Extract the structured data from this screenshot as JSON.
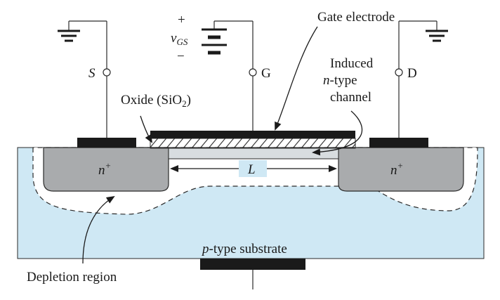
{
  "labels": {
    "gate_electrode": "Gate electrode",
    "vgs_plus": "+",
    "vgs_v": "v",
    "vgs_sub": "GS",
    "vgs_minus": "−",
    "source": "S",
    "gate": "G",
    "drain": "D",
    "oxide_main": "Oxide (SiO",
    "oxide_sub": "2",
    "oxide_close": ")",
    "induced_line1": "Induced",
    "induced_n": "n",
    "induced_line2_rest": "-type",
    "induced_line3": "channel",
    "n_plus_left": "n",
    "n_plus_left_sup": "+",
    "n_plus_right": "n",
    "n_plus_right_sup": "+",
    "length": "L",
    "substrate_p": "p",
    "substrate_rest": "-type substrate",
    "depletion": "Depletion region"
  },
  "colors": {
    "substrate": "#cfe8f4",
    "n_region": "#a9abad",
    "depletion": "#ffffff",
    "metal": "#1a1a1a",
    "channel": "#d8dde0",
    "line": "#2a2a2a"
  },
  "icons": [
    "ground-icon",
    "battery-icon",
    "terminal-circle-icon",
    "arrow-icon"
  ]
}
